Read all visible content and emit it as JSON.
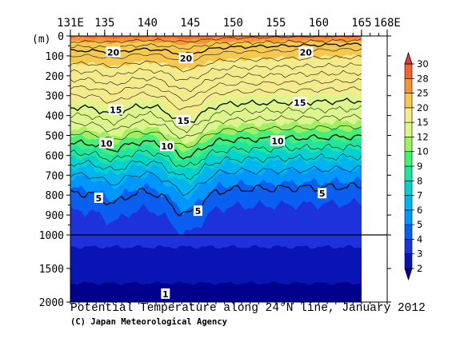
{
  "chart_data": {
    "type": "heatmap",
    "title": "Potential Temperature along 24°N line, January 2012",
    "credit": "(C) Japan Meteorological Agency",
    "x_axis": {
      "ticks": [
        "131E",
        "135",
        "140",
        "145",
        "150",
        "155",
        "160",
        "165",
        "168E"
      ],
      "tick_values": [
        131,
        135,
        140,
        145,
        150,
        155,
        160,
        165,
        168
      ],
      "range": [
        131,
        168
      ]
    },
    "y_axis": {
      "unit_label": "(m)",
      "upper_ticks": [
        "0",
        "100",
        "200",
        "300",
        "400",
        "500",
        "600",
        "700",
        "800",
        "900",
        "1000"
      ],
      "upper_tick_values": [
        0,
        100,
        200,
        300,
        400,
        500,
        600,
        700,
        800,
        900,
        1000
      ],
      "lower_ticks": [
        "1500",
        "2000"
      ],
      "lower_tick_values": [
        1500,
        2000
      ],
      "reversed": true,
      "scale_break_at": 1000
    },
    "colorbar": {
      "labels": [
        "2",
        "3",
        "4",
        "5",
        "6",
        "7",
        "8",
        "9",
        "10",
        "12",
        "15",
        "20",
        "25",
        "28",
        "30"
      ],
      "colors": [
        "#00008c",
        "#0a14b4",
        "#1e32dc",
        "#0a5ff0",
        "#0096ff",
        "#00b4f0",
        "#00d2d2",
        "#1ee6a0",
        "#46f078",
        "#a0f064",
        "#dcf58c",
        "#f5eb8c",
        "#f5c850",
        "#f59632",
        "#f06432",
        "#e63c3c"
      ]
    },
    "contour_labels": [
      {
        "text": "20",
        "lon": 136,
        "depth": 82
      },
      {
        "text": "20",
        "lon": 144.5,
        "depth": 113
      },
      {
        "text": "20",
        "lon": 158.5,
        "depth": 82
      },
      {
        "text": "15",
        "lon": 136.3,
        "depth": 372
      },
      {
        "text": "15",
        "lon": 144.2,
        "depth": 425
      },
      {
        "text": "15",
        "lon": 157.8,
        "depth": 335
      },
      {
        "text": "10",
        "lon": 135.2,
        "depth": 540
      },
      {
        "text": "10",
        "lon": 142.3,
        "depth": 555
      },
      {
        "text": "10",
        "lon": 155.2,
        "depth": 528
      },
      {
        "text": "5",
        "lon": 134.3,
        "depth": 815
      },
      {
        "text": "5",
        "lon": 145.9,
        "depth": 880
      },
      {
        "text": "5",
        "lon": 160.4,
        "depth": 792
      },
      {
        "text": "1",
        "lon": 142.1,
        "depth": 1880
      }
    ],
    "isotherm_depths": {
      "lon": [
        131,
        133,
        135,
        137,
        139,
        141,
        143,
        144,
        145,
        146,
        147,
        149,
        151,
        153,
        155,
        157,
        159,
        161,
        163,
        165
      ],
      "t5": [
        870,
        860,
        880,
        900,
        910,
        880,
        870,
        900,
        980,
        1000,
        960,
        920,
        900,
        880,
        880,
        900,
        910,
        880,
        870,
        880
      ],
      "t4": [
        1000,
        1000,
        1000,
        1000,
        1000,
        1000,
        1000,
        1000,
        1000,
        1000,
        1000,
        1000,
        1000,
        1000,
        1000,
        1000,
        1000,
        1000,
        1000,
        1000
      ]
    }
  }
}
